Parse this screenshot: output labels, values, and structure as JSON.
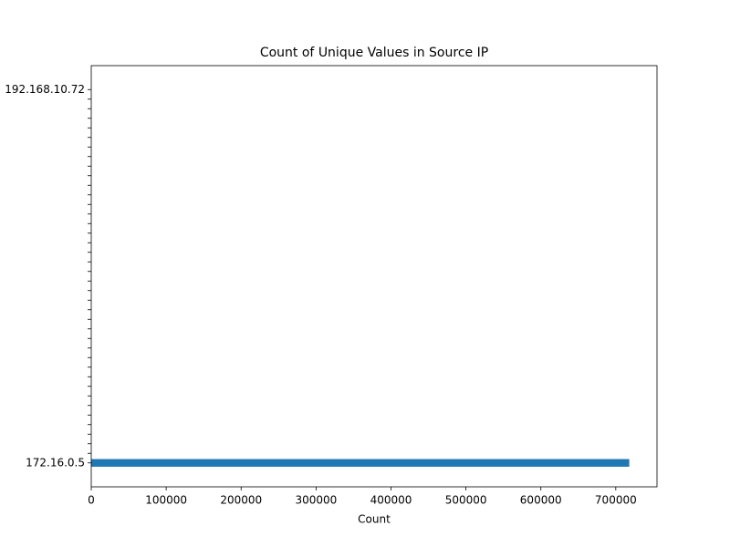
{
  "chart_data": {
    "type": "barh",
    "title": "Count of Unique Values in  Source IP",
    "xlabel": "Count",
    "categories": [
      "172.16.0.5",
      null,
      null,
      null,
      null,
      null,
      null,
      null,
      null,
      null,
      null,
      null,
      null,
      null,
      null,
      null,
      null,
      null,
      null,
      null,
      null,
      null,
      null,
      null,
      null,
      null,
      null,
      null,
      null,
      null,
      null,
      null,
      null,
      null,
      null,
      null,
      null,
      null,
      null,
      "192.168.10.72"
    ],
    "values": [
      718000,
      0,
      0,
      0,
      0,
      0,
      0,
      0,
      0,
      0,
      0,
      0,
      0,
      0,
      0,
      0,
      0,
      0,
      0,
      0,
      0,
      0,
      0,
      0,
      0,
      0,
      0,
      0,
      0,
      0,
      0,
      0,
      0,
      0,
      0,
      0,
      0,
      0,
      0,
      0
    ],
    "color": "#1f77b4",
    "xlim": [
      0,
      755000
    ],
    "xticks": [
      0,
      100000,
      200000,
      300000,
      400000,
      500000,
      600000,
      700000
    ],
    "grid": false
  }
}
